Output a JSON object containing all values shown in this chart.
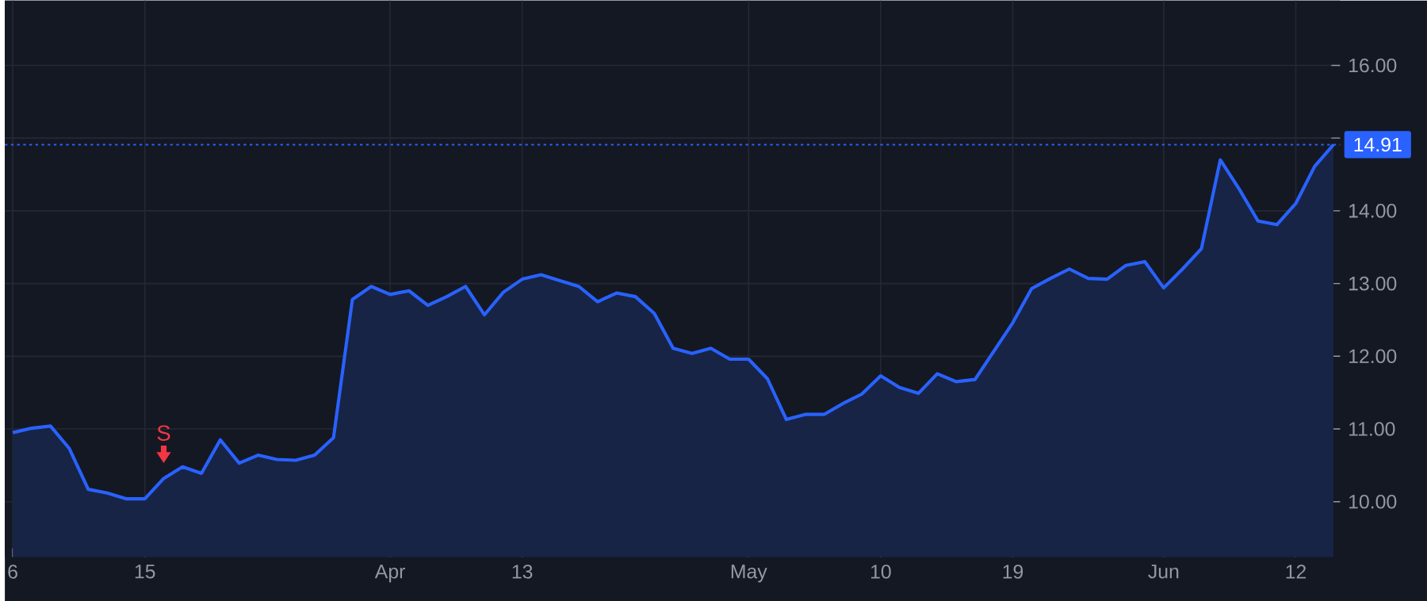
{
  "chart_data": {
    "type": "area",
    "categories": [
      "6",
      null,
      null,
      null,
      null,
      null,
      null,
      "15",
      null,
      null,
      null,
      null,
      null,
      null,
      null,
      null,
      null,
      null,
      null,
      null,
      "Apr",
      null,
      null,
      null,
      null,
      null,
      null,
      "13",
      null,
      null,
      null,
      null,
      null,
      null,
      null,
      null,
      null,
      null,
      null,
      "May",
      null,
      null,
      null,
      null,
      null,
      null,
      "10",
      null,
      null,
      null,
      null,
      null,
      null,
      "19",
      null,
      null,
      null,
      null,
      null,
      null,
      null,
      "Jun",
      null,
      null,
      null,
      null,
      null,
      null,
      "12",
      null,
      null
    ],
    "series": [
      {
        "color": "#2962ff",
        "values": [
          10.95,
          11.01,
          11.04,
          10.73,
          10.17,
          10.12,
          10.04,
          10.04,
          10.32,
          10.48,
          10.39,
          10.85,
          10.53,
          10.64,
          10.58,
          10.57,
          10.64,
          10.88,
          12.78,
          12.96,
          12.85,
          12.9,
          12.7,
          12.82,
          12.96,
          12.57,
          12.88,
          13.06,
          13.12,
          13.04,
          12.96,
          12.75,
          12.87,
          12.82,
          12.59,
          12.11,
          12.04,
          12.11,
          11.96,
          11.96,
          11.69,
          11.13,
          11.2,
          11.2,
          11.35,
          11.48,
          11.73,
          11.57,
          11.49,
          11.76,
          11.65,
          11.68,
          12.07,
          12.46,
          12.93,
          13.07,
          13.2,
          13.07,
          13.06,
          13.25,
          13.3,
          12.94,
          13.2,
          13.48,
          14.7,
          14.3,
          13.86,
          13.81,
          14.1,
          14.61,
          14.91
        ]
      }
    ],
    "ylim": [
      9.24,
      16.89
    ],
    "yticks": [
      {
        "value": 10,
        "label": "10.00"
      },
      {
        "value": 11,
        "label": "11.00"
      },
      {
        "value": 12,
        "label": "12.00"
      },
      {
        "value": 13,
        "label": "13.00"
      },
      {
        "value": 14,
        "label": "14.00"
      },
      {
        "value": 15,
        "label": null
      },
      {
        "value": 16,
        "label": "16.00"
      }
    ],
    "grid": true,
    "ref_lines": [
      {
        "axis": "y",
        "value": 14.91,
        "label": "14.91",
        "color": "#2962ff",
        "line_style": "dotted"
      }
    ],
    "annotations": [
      {
        "text": "S",
        "y": 10.32
      }
    ]
  }
}
